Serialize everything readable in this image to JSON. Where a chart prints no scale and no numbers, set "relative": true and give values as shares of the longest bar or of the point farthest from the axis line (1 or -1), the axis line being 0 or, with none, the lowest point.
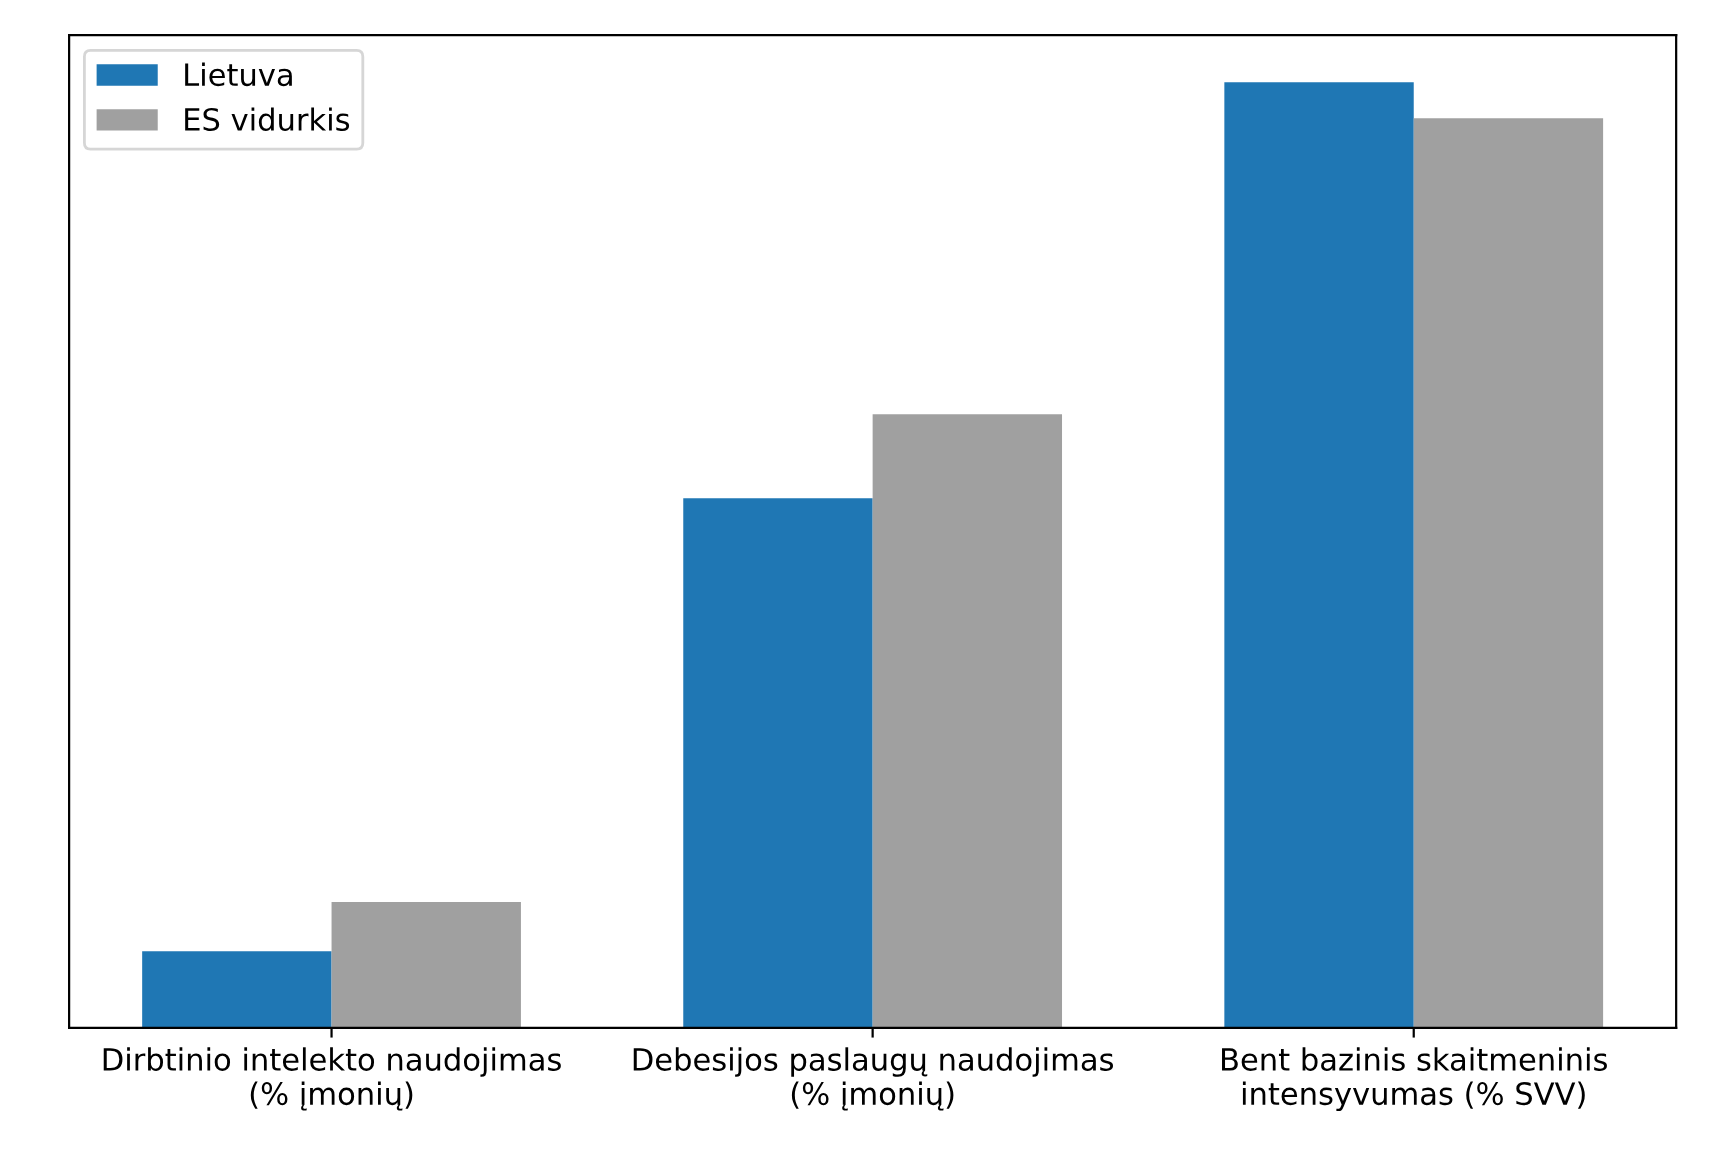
{
  "chart_data": {
    "type": "bar",
    "relative": true,
    "categories": [
      "Dirbtinio intelekto naudojimas\n(% įmonių)",
      "Debesijos paslaugų naudojimas\n(% įmonių)",
      "Bent bazinis skaitmeninis\nintensyvumas (% SVV)"
    ],
    "series": [
      {
        "name": "Lietuva",
        "color": "#1f77b4",
        "values": [
          0.081,
          0.56,
          1
        ]
      },
      {
        "name": "ES vidurkis",
        "color": "#a0a0a0",
        "values": [
          0.133,
          0.649,
          0.962
        ]
      }
    ],
    "legend": "top left",
    "grid": false
  }
}
